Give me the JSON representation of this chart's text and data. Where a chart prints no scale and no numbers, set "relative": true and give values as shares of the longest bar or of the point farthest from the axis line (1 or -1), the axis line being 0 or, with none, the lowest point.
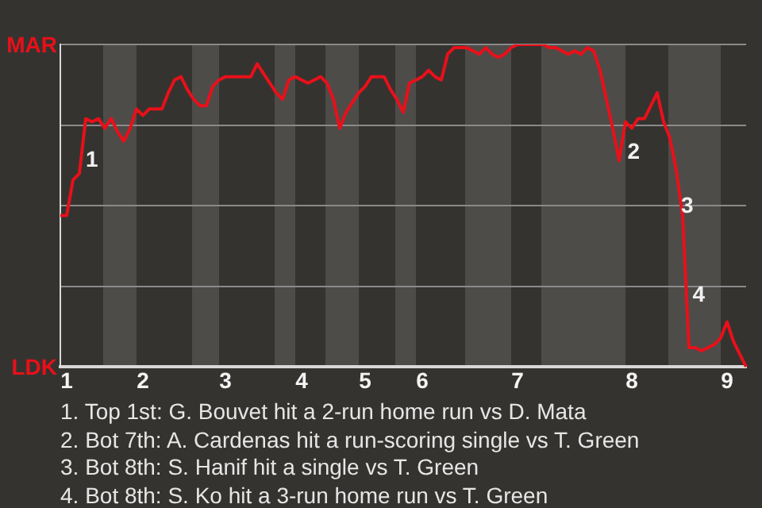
{
  "chart_data": {
    "type": "line",
    "relative": true,
    "categories": [
      null,
      "1",
      null,
      null,
      null,
      null,
      null,
      null,
      null,
      null,
      null,
      null,
      null,
      "2",
      null,
      null,
      null,
      null,
      null,
      null,
      null,
      null,
      null,
      null,
      null,
      null,
      "3",
      null,
      null,
      null,
      null,
      null,
      null,
      null,
      null,
      null,
      null,
      null,
      "4",
      null,
      null,
      null,
      null,
      null,
      null,
      null,
      null,
      null,
      "5",
      null,
      null,
      null,
      null,
      null,
      null,
      null,
      null,
      "6",
      null,
      null,
      null,
      null,
      null,
      null,
      null,
      null,
      null,
      null,
      null,
      null,
      null,
      null,
      "7",
      null,
      null,
      null,
      null,
      null,
      null,
      null,
      null,
      null,
      null,
      null,
      null,
      null,
      null,
      null,
      null,
      null,
      "8",
      null,
      null,
      null,
      null,
      null,
      null,
      null,
      null,
      null,
      null,
      null,
      null,
      null,
      null,
      "9",
      null,
      null,
      null
    ],
    "series": [
      {
        "color": "#e8101a",
        "values": [
          0.47,
          0.47,
          0.58,
          0.6,
          0.77,
          0.76,
          0.77,
          0.74,
          0.77,
          0.73,
          0.7,
          0.74,
          0.8,
          0.78,
          0.8,
          0.8,
          0.8,
          0.85,
          0.89,
          0.9,
          0.86,
          0.83,
          0.81,
          0.81,
          0.87,
          0.89,
          0.9,
          0.9,
          0.9,
          0.9,
          0.9,
          0.94,
          0.91,
          0.88,
          0.85,
          0.83,
          0.89,
          0.9,
          0.89,
          0.88,
          0.89,
          0.9,
          0.88,
          0.83,
          0.74,
          0.79,
          0.82,
          0.85,
          0.87,
          0.9,
          0.9,
          0.9,
          0.86,
          0.83,
          0.79,
          0.88,
          0.89,
          0.9,
          0.92,
          0.9,
          0.89,
          0.97,
          0.99,
          0.99,
          0.99,
          0.98,
          0.97,
          0.99,
          0.97,
          0.96,
          0.97,
          0.99,
          1,
          1,
          1,
          1,
          1,
          0.99,
          0.99,
          0.98,
          0.97,
          0.98,
          0.97,
          0.99,
          0.98,
          0.92,
          0.83,
          0.74,
          0.64,
          0.76,
          0.74,
          0.77,
          0.77,
          0.81,
          0.85,
          0.76,
          0.71,
          0.61,
          0.47,
          0.06,
          0.06,
          0.05,
          0.06,
          0.07,
          0.09,
          0.14,
          0.08,
          0.04,
          0
        ]
      }
    ],
    "grid": "y",
    "marker": "none",
    "line_style": "solid",
    "annotations": [
      "MAR",
      "LDK",
      "1",
      "2",
      "3",
      "4",
      "1. Top 1st: G. Bouvet hit a 2-run home run vs D. Mata",
      "2. Bot 7th: A. Cardenas hit a run-scoring single vs T. Green",
      "3. Bot 8th: S. Hanif hit a single vs T. Green",
      "4. Bot 8th: S. Ko hit a 3-run home run vs T. Green"
    ]
  }
}
